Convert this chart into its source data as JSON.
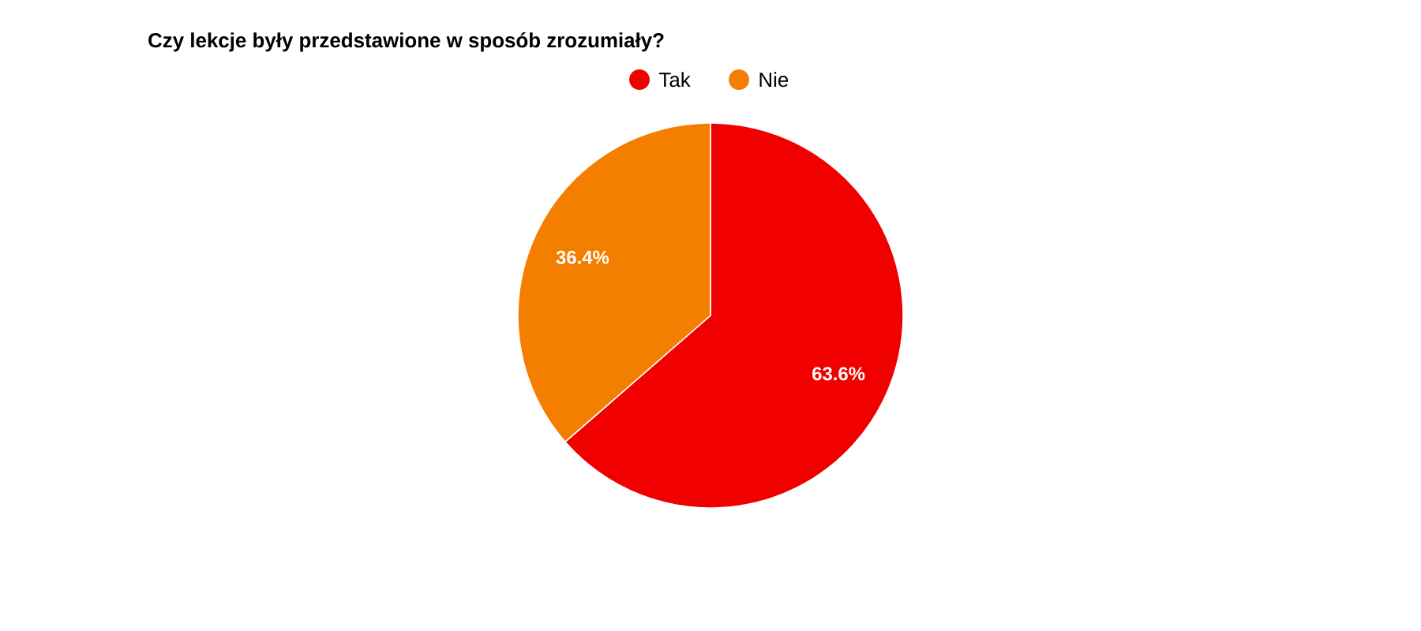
{
  "chart_data": {
    "type": "pie",
    "title": "Czy lekcje były przedstawione w sposób zrozumiały?",
    "categories": [
      "Tak",
      "Nie"
    ],
    "values": [
      63.6,
      36.4
    ],
    "colors": [
      "#f10000",
      "#f37e00"
    ],
    "value_labels": [
      "63.6%",
      "36.4%"
    ],
    "legend": "top"
  }
}
